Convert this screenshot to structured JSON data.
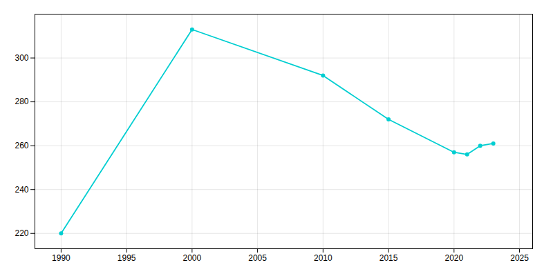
{
  "chart_data": {
    "type": "line",
    "x": [
      1990,
      2000,
      2010,
      2015,
      2020,
      2021,
      2022,
      2023
    ],
    "values": [
      220,
      313,
      292,
      272,
      257,
      256,
      260,
      261
    ],
    "color": "#00CED1",
    "marker": "circle",
    "xlim": [
      1988,
      2026
    ],
    "ylim": [
      213,
      320
    ],
    "xticks": [
      1990,
      1995,
      2000,
      2005,
      2010,
      2015,
      2020,
      2025
    ],
    "yticks": [
      220,
      240,
      260,
      280,
      300
    ],
    "grid": true
  }
}
